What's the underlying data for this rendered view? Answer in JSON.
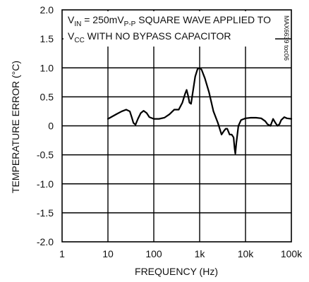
{
  "chart_data": {
    "type": "line",
    "title": "",
    "xlabel": "FREQUENCY (Hz)",
    "ylabel": "TEMPERATURE ERROR (°C)",
    "xscale": "log",
    "xlim": [
      1,
      100000
    ],
    "ylim": [
      -2.0,
      2.0
    ],
    "grid": true,
    "x_ticks": [
      1,
      10,
      100,
      1000,
      10000,
      100000
    ],
    "x_tick_labels": [
      "1",
      "10",
      "100",
      "1k",
      "10k",
      "100k"
    ],
    "y_ticks": [
      2.0,
      1.5,
      1.0,
      0.5,
      0,
      -0.5,
      -1.0,
      -1.5,
      -2.0
    ],
    "y_tick_labels": [
      "2.0",
      "1.5",
      "1.0",
      "0.5",
      "0",
      "-0.5",
      "-1.0",
      "-1.5",
      "-2.0"
    ],
    "annotation": {
      "line1_prefix": "V",
      "line1_sub": "IN",
      "line1_mid": " = 250mV",
      "line1_sub2": "P-P",
      "line1_suffix": " SQUARE WAVE APPLIED TO",
      "line2_prefix": "V",
      "line2_sub": "CC",
      "line2_suffix": " WITH NO BYPASS CAPACITOR"
    },
    "figure_code": "MAX6639 toc06",
    "series": [
      {
        "color": "#000000",
        "x": [
          10,
          13,
          16,
          20,
          25,
          30,
          33,
          36,
          40,
          45,
          52,
          60,
          70,
          80,
          100,
          130,
          170,
          220,
          280,
          350,
          420,
          480,
          520,
          560,
          600,
          650,
          700,
          800,
          900,
          1000,
          1100,
          1300,
          1600,
          2000,
          2500,
          3000,
          3300,
          3700,
          4000,
          4500,
          5000,
          5500,
          5800,
          6000,
          6300,
          7000,
          8000,
          10000,
          13000,
          17000,
          22000,
          27000,
          30000,
          35000,
          40000,
          45000,
          50000,
          55000,
          60000,
          70000,
          80000,
          100000
        ],
        "y": [
          0.12,
          0.17,
          0.21,
          0.25,
          0.28,
          0.25,
          0.15,
          0.05,
          0.02,
          0.12,
          0.22,
          0.26,
          0.22,
          0.15,
          0.12,
          0.12,
          0.14,
          0.2,
          0.28,
          0.28,
          0.4,
          0.55,
          0.62,
          0.52,
          0.4,
          0.38,
          0.55,
          0.85,
          0.98,
          1.0,
          0.97,
          0.82,
          0.58,
          0.25,
          0.05,
          -0.15,
          -0.1,
          -0.05,
          -0.05,
          -0.15,
          -0.15,
          -0.2,
          -0.4,
          -0.48,
          -0.3,
          0.0,
          0.1,
          0.13,
          0.14,
          0.14,
          0.13,
          0.08,
          0.03,
          0.0,
          0.12,
          0.05,
          0.0,
          0.03,
          0.1,
          0.15,
          0.13,
          0.12
        ]
      }
    ]
  }
}
